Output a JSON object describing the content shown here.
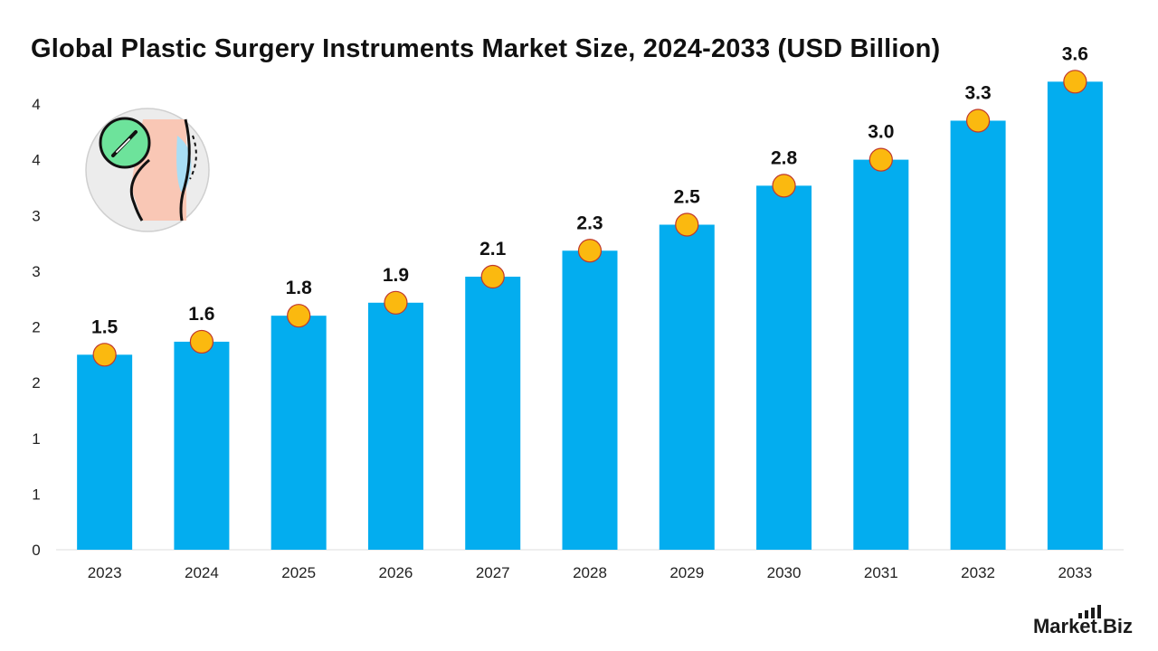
{
  "chart_data": {
    "type": "bar",
    "title": "Global Plastic Surgery Instruments Market Size, 2024-2033 (USD Billion)",
    "xlabel": "",
    "ylabel": "",
    "categories": [
      "2023",
      "2024",
      "2025",
      "2026",
      "2027",
      "2028",
      "2029",
      "2030",
      "2031",
      "2032",
      "2033"
    ],
    "values": [
      1.5,
      1.6,
      1.8,
      1.9,
      2.1,
      2.3,
      2.5,
      2.8,
      3.0,
      3.3,
      3.6
    ],
    "data_labels": [
      "1.5",
      "1.6",
      "1.8",
      "1.9",
      "2.1",
      "2.3",
      "2.5",
      "2.8",
      "3.0",
      "3.3",
      "3.6"
    ],
    "y_tick_labels": [
      "0",
      "1",
      "1",
      "2",
      "2",
      "3",
      "3",
      "4",
      "4"
    ],
    "ylim": [
      0,
      4
    ],
    "grid": false,
    "legend": "none",
    "bar_color": "#03adef",
    "marker_color": "#fbb90f",
    "marker_edge_color": "#c0392b"
  },
  "brand": {
    "name": "Market.Biz"
  },
  "icons": {
    "illustration": "plastic-surgery-icon",
    "logo_bars": "signal-bars-icon"
  }
}
